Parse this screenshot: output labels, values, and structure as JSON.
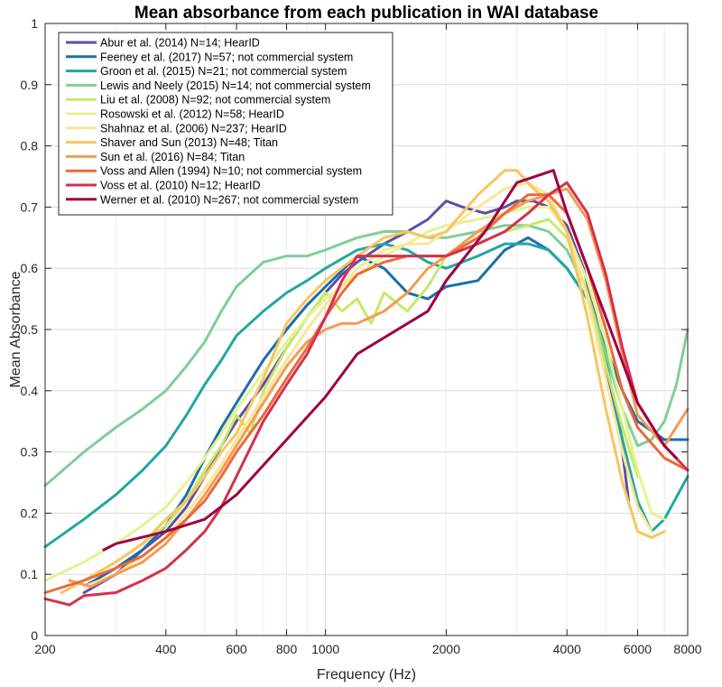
{
  "chart_data": {
    "type": "line",
    "title": "Mean absorbance from each publication in WAI database",
    "xlabel": "Frequency (Hz)",
    "ylabel": "Mean Absorbance",
    "x_scale": "log",
    "xlim": [
      200,
      8000
    ],
    "ylim": [
      0,
      1
    ],
    "x_ticks": [
      200,
      400,
      600,
      800,
      1000,
      2000,
      4000,
      6000,
      8000
    ],
    "x_tick_labels": [
      "200",
      "400",
      "600",
      "800",
      "1000",
      "2000",
      "4000",
      "6000",
      "8000"
    ],
    "y_ticks": [
      0,
      0.1,
      0.2,
      0.3,
      0.4,
      0.5,
      0.6,
      0.7,
      0.8,
      0.9,
      1
    ],
    "y_tick_labels": [
      "0",
      "0.1",
      "0.2",
      "0.3",
      "0.4",
      "0.5",
      "0.6",
      "0.7",
      "0.8",
      "0.9",
      "1"
    ],
    "grid": true,
    "legend_position": "top-left",
    "series": [
      {
        "name": "Abur et al. (2014) N=14; HearID",
        "color": "#5e4fa2",
        "x": [
          250,
          300,
          350,
          400,
          450,
          500,
          550,
          600,
          700,
          800,
          900,
          1000,
          1100,
          1200,
          1400,
          1600,
          1800,
          2000,
          2200,
          2500,
          2800,
          3000,
          3300,
          3600,
          4000,
          4400,
          4800,
          5200,
          5500,
          5700
        ],
        "y": [
          0.07,
          0.1,
          0.14,
          0.17,
          0.21,
          0.26,
          0.31,
          0.35,
          0.41,
          0.47,
          0.52,
          0.56,
          0.59,
          0.61,
          0.64,
          0.66,
          0.68,
          0.71,
          0.7,
          0.69,
          0.7,
          0.71,
          0.71,
          0.7,
          0.67,
          0.6,
          0.5,
          0.38,
          0.3,
          0.22
        ]
      },
      {
        "name": "Feeney et al. (2017) N=57; not commercial system",
        "color": "#1b6fa8",
        "x": [
          250,
          300,
          350,
          400,
          450,
          500,
          550,
          600,
          700,
          800,
          900,
          1000,
          1200,
          1400,
          1600,
          1800,
          2000,
          2400,
          2800,
          3200,
          3600,
          4000,
          4500,
          5000,
          5500,
          6000,
          7000,
          8000
        ],
        "y": [
          0.08,
          0.11,
          0.14,
          0.18,
          0.23,
          0.29,
          0.34,
          0.38,
          0.45,
          0.5,
          0.54,
          0.57,
          0.62,
          0.6,
          0.56,
          0.55,
          0.57,
          0.58,
          0.63,
          0.65,
          0.63,
          0.6,
          0.55,
          0.47,
          0.4,
          0.35,
          0.32,
          0.32
        ]
      },
      {
        "name": "Groon et al. (2015) N=21; not commercial system",
        "color": "#21a8a0",
        "x": [
          200,
          250,
          300,
          350,
          400,
          450,
          500,
          550,
          600,
          700,
          800,
          900,
          1000,
          1200,
          1400,
          1600,
          1800,
          2000,
          2400,
          2800,
          3200,
          3600,
          4000,
          4500,
          5000,
          5500,
          6000,
          6500,
          7000,
          8000
        ],
        "y": [
          0.145,
          0.19,
          0.23,
          0.27,
          0.31,
          0.36,
          0.41,
          0.45,
          0.49,
          0.53,
          0.56,
          0.58,
          0.6,
          0.63,
          0.64,
          0.63,
          0.61,
          0.6,
          0.62,
          0.64,
          0.64,
          0.63,
          0.6,
          0.55,
          0.45,
          0.32,
          0.22,
          0.17,
          0.19,
          0.26
        ]
      },
      {
        "name": "Lewis and Neely (2015) N=14; not commercial system",
        "color": "#7fcf96",
        "x": [
          200,
          250,
          300,
          350,
          400,
          450,
          500,
          550,
          600,
          700,
          800,
          900,
          1000,
          1200,
          1400,
          1600,
          1800,
          2000,
          2400,
          2800,
          3200,
          3600,
          4000,
          4500,
          5000,
          5500,
          6000,
          6500,
          7000,
          7500,
          8000
        ],
        "y": [
          0.245,
          0.3,
          0.34,
          0.37,
          0.4,
          0.44,
          0.48,
          0.53,
          0.57,
          0.61,
          0.62,
          0.62,
          0.63,
          0.65,
          0.66,
          0.66,
          0.65,
          0.65,
          0.66,
          0.67,
          0.67,
          0.66,
          0.63,
          0.56,
          0.46,
          0.37,
          0.31,
          0.32,
          0.35,
          0.41,
          0.5
        ]
      },
      {
        "name": "Liu et al. (2008) N=92; not commercial system",
        "color": "#c7e86b",
        "x": [
          250,
          300,
          350,
          400,
          450,
          500,
          550,
          600,
          650,
          700,
          800,
          900,
          1000,
          1100,
          1200,
          1300,
          1400,
          1600,
          1800,
          2000,
          2400,
          2800,
          3200,
          3600,
          4000,
          4500,
          5000,
          5500,
          6000
        ],
        "y": [
          0.09,
          0.12,
          0.15,
          0.18,
          0.22,
          0.27,
          0.31,
          0.36,
          0.33,
          0.4,
          0.47,
          0.52,
          0.56,
          0.53,
          0.55,
          0.51,
          0.56,
          0.53,
          0.57,
          0.62,
          0.64,
          0.66,
          0.67,
          0.68,
          0.65,
          0.56,
          0.44,
          0.34,
          0.26
        ]
      },
      {
        "name": "Rosowski et al. (2012) N=58; HearID",
        "color": "#e5f292",
        "x": [
          200,
          250,
          300,
          350,
          400,
          450,
          500,
          550,
          600,
          700,
          800,
          900,
          1000,
          1200,
          1400,
          1600,
          1800,
          2000,
          2400,
          2800,
          3200,
          3600,
          4000,
          4500,
          5000,
          5500,
          6000,
          6500,
          7000
        ],
        "y": [
          0.09,
          0.12,
          0.15,
          0.18,
          0.21,
          0.25,
          0.29,
          0.33,
          0.37,
          0.43,
          0.48,
          0.52,
          0.55,
          0.59,
          0.62,
          0.64,
          0.66,
          0.67,
          0.68,
          0.69,
          0.7,
          0.7,
          0.66,
          0.58,
          0.48,
          0.37,
          0.27,
          0.2,
          0.19
        ]
      },
      {
        "name": "Shahnaz et al. (2006) N=237; HearID",
        "color": "#fbe59a",
        "x": [
          250,
          300,
          350,
          400,
          450,
          500,
          550,
          600,
          700,
          800,
          900,
          1000,
          1200,
          1400,
          1600,
          1800,
          2000,
          2400,
          2800,
          3200,
          3600,
          4000,
          4500,
          5000,
          5500,
          6000,
          6500
        ],
        "y": [
          0.08,
          0.1,
          0.13,
          0.16,
          0.2,
          0.24,
          0.28,
          0.32,
          0.39,
          0.45,
          0.5,
          0.54,
          0.6,
          0.63,
          0.64,
          0.64,
          0.66,
          0.7,
          0.73,
          0.74,
          0.72,
          0.66,
          0.55,
          0.42,
          0.3,
          0.21,
          0.17
        ]
      },
      {
        "name": "Shaver and Sun (2013) N=48; Titan",
        "color": "#f8c55e",
        "x": [
          220,
          250,
          300,
          350,
          400,
          450,
          500,
          550,
          600,
          700,
          800,
          900,
          1000,
          1200,
          1400,
          1600,
          1800,
          2000,
          2400,
          2800,
          3000,
          3300,
          3600,
          4000,
          4500,
          5000,
          5500,
          6000,
          6500,
          7000
        ],
        "y": [
          0.07,
          0.09,
          0.12,
          0.15,
          0.19,
          0.22,
          0.26,
          0.3,
          0.33,
          0.42,
          0.51,
          0.55,
          0.58,
          0.62,
          0.65,
          0.66,
          0.65,
          0.66,
          0.72,
          0.76,
          0.76,
          0.73,
          0.71,
          0.66,
          0.52,
          0.37,
          0.25,
          0.17,
          0.16,
          0.17
        ]
      },
      {
        "name": "Sun et al. (2016) N=84; Titan",
        "color": "#f59b52",
        "x": [
          230,
          260,
          300,
          350,
          400,
          450,
          500,
          550,
          600,
          700,
          800,
          900,
          1000,
          1100,
          1200,
          1400,
          1600,
          1800,
          2000,
          2400,
          2800,
          3200,
          3600,
          4000,
          4500,
          5000,
          5500,
          6000,
          7000,
          8000
        ],
        "y": [
          0.09,
          0.08,
          0.1,
          0.12,
          0.15,
          0.19,
          0.23,
          0.27,
          0.31,
          0.38,
          0.44,
          0.48,
          0.5,
          0.51,
          0.51,
          0.53,
          0.56,
          0.6,
          0.62,
          0.66,
          0.69,
          0.71,
          0.72,
          0.73,
          0.68,
          0.58,
          0.46,
          0.36,
          0.31,
          0.37
        ]
      },
      {
        "name": "Voss and Allen (1994) N=10; not commercial system",
        "color": "#ea6a3c",
        "x": [
          200,
          250,
          300,
          350,
          400,
          450,
          500,
          550,
          600,
          700,
          800,
          900,
          1000,
          1100,
          1200,
          1400,
          1600,
          1800,
          2000,
          2400,
          2800,
          3200,
          3600,
          4000,
          4500,
          5000,
          5500,
          6000,
          7000,
          8000
        ],
        "y": [
          0.07,
          0.09,
          0.11,
          0.13,
          0.16,
          0.19,
          0.22,
          0.26,
          0.3,
          0.36,
          0.42,
          0.47,
          0.52,
          0.56,
          0.59,
          0.61,
          0.62,
          0.62,
          0.62,
          0.65,
          0.69,
          0.72,
          0.72,
          0.69,
          0.6,
          0.5,
          0.4,
          0.34,
          0.29,
          0.27
        ]
      },
      {
        "name": "Voss et al. (2010) N=12; HearID",
        "color": "#d6304e",
        "x": [
          200,
          230,
          250,
          300,
          350,
          400,
          450,
          500,
          550,
          600,
          700,
          800,
          900,
          1000,
          1100,
          1200,
          1400,
          1600,
          1800,
          2000,
          2400,
          2800,
          3200,
          3600,
          4000,
          4500,
          5000,
          5500,
          6000,
          7000,
          8000
        ],
        "y": [
          0.06,
          0.05,
          0.065,
          0.07,
          0.09,
          0.11,
          0.14,
          0.17,
          0.21,
          0.26,
          0.35,
          0.41,
          0.46,
          0.52,
          0.58,
          0.62,
          0.62,
          0.62,
          0.62,
          0.62,
          0.64,
          0.66,
          0.69,
          0.72,
          0.74,
          0.69,
          0.59,
          0.47,
          0.38,
          0.31,
          0.27
        ]
      },
      {
        "name": "Werner et al. (2010) N=267; not commercial system",
        "color": "#9e0142",
        "x": [
          280,
          300,
          400,
          500,
          600,
          800,
          1000,
          1200,
          1800,
          2000,
          2500,
          3000,
          3700,
          4000,
          5000,
          6000,
          7000,
          7500
        ],
        "y": [
          0.14,
          0.15,
          0.17,
          0.19,
          0.23,
          0.32,
          0.39,
          0.46,
          0.53,
          0.58,
          0.66,
          0.74,
          0.76,
          0.69,
          0.52,
          0.38,
          0.31,
          0.29
        ]
      }
    ]
  }
}
